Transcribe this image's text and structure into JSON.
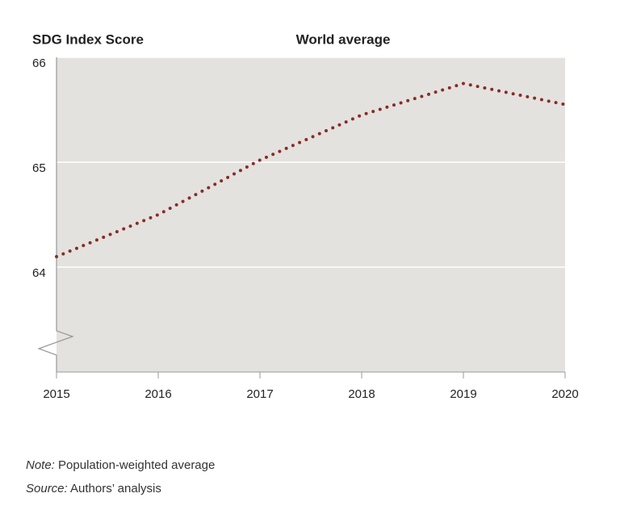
{
  "chart_data": {
    "type": "line",
    "title": "World average",
    "y_label": "SDG Index Score",
    "x": [
      2015,
      2016,
      2017,
      2018,
      2019,
      2020
    ],
    "series": [
      {
        "name": "World average",
        "color": "#8b2a24",
        "values": [
          64.1,
          64.5,
          65.02,
          65.45,
          65.75,
          65.55
        ]
      }
    ],
    "xlim": [
      2015,
      2020
    ],
    "xticks": [
      2015,
      2016,
      2017,
      2018,
      2019,
      2020
    ],
    "ylim": [
      63,
      66
    ],
    "yticks": [
      64,
      65,
      66
    ],
    "grid": true,
    "background": "#e3e2df"
  },
  "notes": [
    {
      "label": "Note:",
      "text": "Population-weighted average"
    },
    {
      "label": "Source:",
      "text": "Authors’ analysis"
    }
  ]
}
